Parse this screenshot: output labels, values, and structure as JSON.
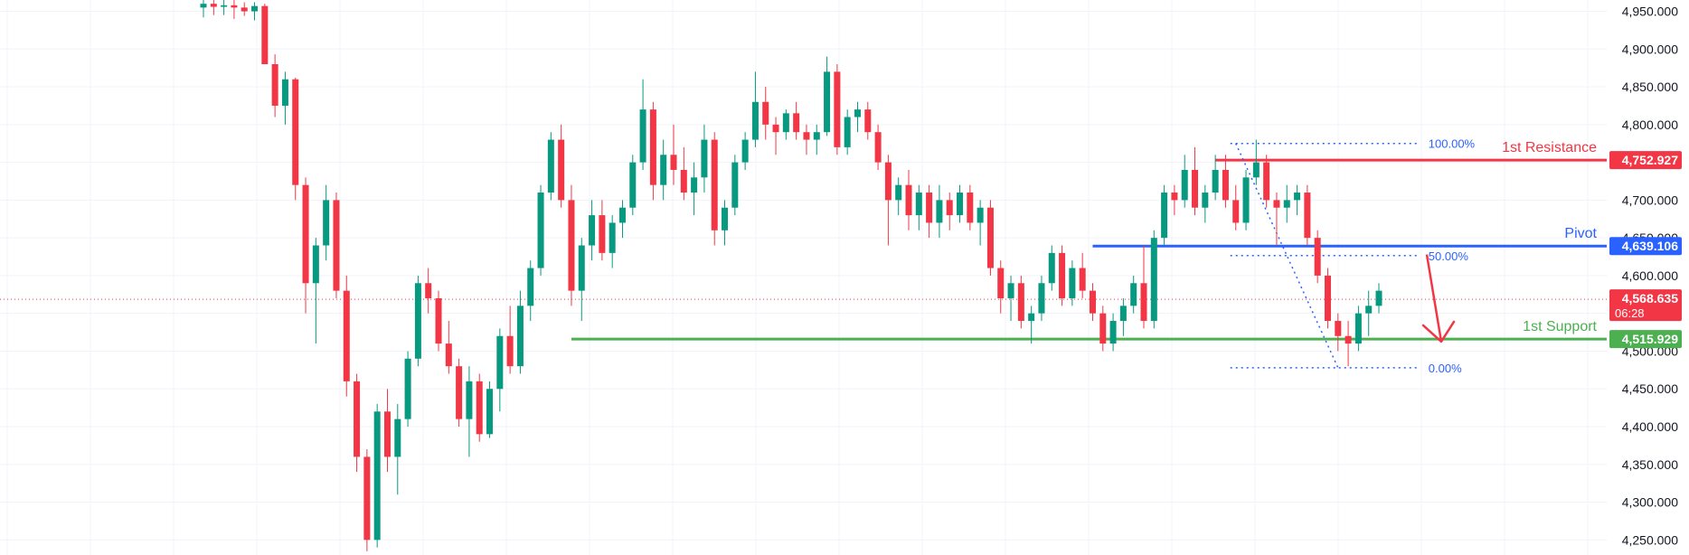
{
  "chart_data": {
    "type": "candlestick",
    "ylim": [
      4230,
      4965
    ],
    "x_count": 116,
    "colors": {
      "up": "#089981",
      "down": "#f23645",
      "grid": "#f0f3fa"
    },
    "y_ticks": [
      "4,950.000",
      "4,900.000",
      "4,850.000",
      "4,800.000",
      "4,750.000",
      "4,700.000",
      "4,650.000",
      "4,600.000",
      "4,550.000",
      "4,500.000",
      "4,450.000",
      "4,400.000",
      "4,350.000",
      "4,300.000",
      "4,250.000"
    ],
    "y_tick_values": [
      4950,
      4900,
      4850,
      4800,
      4750,
      4700,
      4650,
      4600,
      4550,
      4500,
      4450,
      4400,
      4350,
      4300,
      4250
    ],
    "levels": [
      {
        "name": "1st Resistance",
        "value": 4752.927,
        "label": "4,752.927",
        "color": "#f23645",
        "start": 99
      },
      {
        "name": "Pivot",
        "value": 4639.106,
        "label": "4,639.106",
        "color": "#2962ff",
        "start": 87
      },
      {
        "name": "1st Support",
        "value": 4515.929,
        "label": "4,515.929",
        "color": "#4caf50",
        "start": 36
      }
    ],
    "current_price": {
      "value": 4568.635,
      "label": "4,568.635",
      "countdown": "06:28",
      "color": "#f23645"
    },
    "fibonacci": {
      "high": 4775,
      "low": 4478,
      "x_start": 101,
      "x_end": 111,
      "levels": [
        {
          "label": "100.00%",
          "value": 4775
        },
        {
          "label": "50.00%",
          "value": 4626.5
        },
        {
          "label": "0.00%",
          "value": 4478
        }
      ]
    },
    "projection_arrow": {
      "from": 4628,
      "to": 4515
    },
    "candles": [
      [
        4955,
        4965,
        4942,
        4960
      ],
      [
        4960,
        4965,
        4945,
        4956
      ],
      [
        4956,
        4965,
        4945,
        4958
      ],
      [
        4958,
        4965,
        4940,
        4955
      ],
      [
        4955,
        4962,
        4944,
        4950
      ],
      [
        4950,
        4962,
        4938,
        4957
      ],
      [
        4957,
        4960,
        4880,
        4880
      ],
      [
        4880,
        4893,
        4810,
        4825
      ],
      [
        4825,
        4870,
        4800,
        4860
      ],
      [
        4860,
        4862,
        4700,
        4720
      ],
      [
        4720,
        4730,
        4550,
        4590
      ],
      [
        4590,
        4650,
        4510,
        4640
      ],
      [
        4640,
        4720,
        4620,
        4700
      ],
      [
        4700,
        4710,
        4570,
        4580
      ],
      [
        4580,
        4600,
        4440,
        4460
      ],
      [
        4460,
        4470,
        4340,
        4360
      ],
      [
        4360,
        4370,
        4235,
        4250
      ],
      [
        4250,
        4430,
        4240,
        4420
      ],
      [
        4420,
        4450,
        4340,
        4360
      ],
      [
        4360,
        4430,
        4310,
        4410
      ],
      [
        4410,
        4500,
        4400,
        4490
      ],
      [
        4490,
        4600,
        4480,
        4590
      ],
      [
        4590,
        4610,
        4550,
        4570
      ],
      [
        4570,
        4580,
        4500,
        4510
      ],
      [
        4510,
        4540,
        4470,
        4480
      ],
      [
        4480,
        4490,
        4400,
        4410
      ],
      [
        4410,
        4480,
        4360,
        4460
      ],
      [
        4460,
        4470,
        4380,
        4390
      ],
      [
        4390,
        4460,
        4385,
        4450
      ],
      [
        4450,
        4530,
        4420,
        4520
      ],
      [
        4520,
        4560,
        4470,
        4480
      ],
      [
        4480,
        4580,
        4470,
        4560
      ],
      [
        4560,
        4620,
        4540,
        4610
      ],
      [
        4610,
        4720,
        4600,
        4710
      ],
      [
        4710,
        4790,
        4700,
        4780
      ],
      [
        4780,
        4800,
        4690,
        4700
      ],
      [
        4700,
        4720,
        4560,
        4580
      ],
      [
        4580,
        4650,
        4540,
        4640
      ],
      [
        4640,
        4700,
        4620,
        4680
      ],
      [
        4680,
        4700,
        4620,
        4630
      ],
      [
        4630,
        4680,
        4610,
        4670
      ],
      [
        4670,
        4700,
        4650,
        4690
      ],
      [
        4690,
        4760,
        4680,
        4750
      ],
      [
        4750,
        4860,
        4740,
        4820
      ],
      [
        4820,
        4830,
        4700,
        4720
      ],
      [
        4720,
        4780,
        4700,
        4760
      ],
      [
        4760,
        4800,
        4720,
        4740
      ],
      [
        4740,
        4770,
        4700,
        4710
      ],
      [
        4710,
        4750,
        4680,
        4730
      ],
      [
        4730,
        4800,
        4710,
        4780
      ],
      [
        4780,
        4790,
        4640,
        4660
      ],
      [
        4660,
        4700,
        4640,
        4690
      ],
      [
        4690,
        4760,
        4680,
        4750
      ],
      [
        4750,
        4790,
        4740,
        4780
      ],
      [
        4780,
        4870,
        4770,
        4830
      ],
      [
        4830,
        4850,
        4780,
        4800
      ],
      [
        4800,
        4810,
        4760,
        4790
      ],
      [
        4790,
        4820,
        4780,
        4815
      ],
      [
        4815,
        4830,
        4780,
        4790
      ],
      [
        4790,
        4800,
        4760,
        4780
      ],
      [
        4780,
        4800,
        4760,
        4790
      ],
      [
        4790,
        4890,
        4785,
        4870
      ],
      [
        4870,
        4880,
        4760,
        4770
      ],
      [
        4770,
        4820,
        4760,
        4810
      ],
      [
        4810,
        4830,
        4790,
        4820
      ],
      [
        4820,
        4830,
        4780,
        4790
      ],
      [
        4790,
        4800,
        4740,
        4750
      ],
      [
        4750,
        4760,
        4640,
        4700
      ],
      [
        4700,
        4730,
        4680,
        4720
      ],
      [
        4720,
        4740,
        4660,
        4680
      ],
      [
        4680,
        4720,
        4660,
        4710
      ],
      [
        4710,
        4720,
        4650,
        4670
      ],
      [
        4670,
        4720,
        4650,
        4700
      ],
      [
        4700,
        4710,
        4660,
        4680
      ],
      [
        4680,
        4720,
        4670,
        4710
      ],
      [
        4710,
        4720,
        4660,
        4670
      ],
      [
        4670,
        4700,
        4640,
        4690
      ],
      [
        4690,
        4700,
        4600,
        4610
      ],
      [
        4610,
        4620,
        4550,
        4570
      ],
      [
        4570,
        4600,
        4540,
        4590
      ],
      [
        4590,
        4600,
        4530,
        4540
      ],
      [
        4540,
        4560,
        4510,
        4550
      ],
      [
        4550,
        4600,
        4540,
        4590
      ],
      [
        4590,
        4640,
        4580,
        4630
      ],
      [
        4630,
        4640,
        4560,
        4570
      ],
      [
        4570,
        4620,
        4560,
        4610
      ],
      [
        4610,
        4630,
        4570,
        4580
      ],
      [
        4580,
        4590,
        4540,
        4550
      ],
      [
        4550,
        4560,
        4500,
        4510
      ],
      [
        4510,
        4550,
        4500,
        4540
      ],
      [
        4540,
        4570,
        4520,
        4560
      ],
      [
        4560,
        4600,
        4550,
        4590
      ],
      [
        4590,
        4640,
        4530,
        4540
      ],
      [
        4540,
        4660,
        4530,
        4650
      ],
      [
        4650,
        4720,
        4640,
        4710
      ],
      [
        4710,
        4720,
        4680,
        4700
      ],
      [
        4700,
        4760,
        4690,
        4740
      ],
      [
        4740,
        4770,
        4680,
        4690
      ],
      [
        4690,
        4720,
        4670,
        4710
      ],
      [
        4710,
        4760,
        4700,
        4740
      ],
      [
        4740,
        4760,
        4690,
        4700
      ],
      [
        4700,
        4720,
        4660,
        4670
      ],
      [
        4670,
        4740,
        4660,
        4730
      ],
      [
        4730,
        4780,
        4720,
        4750
      ],
      [
        4750,
        4760,
        4690,
        4700
      ],
      [
        4700,
        4710,
        4640,
        4690
      ],
      [
        4690,
        4720,
        4670,
        4700
      ],
      [
        4700,
        4720,
        4680,
        4710
      ],
      [
        4710,
        4720,
        4640,
        4650
      ],
      [
        4650,
        4660,
        4590,
        4600
      ],
      [
        4600,
        4610,
        4530,
        4540
      ],
      [
        4540,
        4550,
        4500,
        4520
      ],
      [
        4520,
        4540,
        4480,
        4510
      ],
      [
        4510,
        4560,
        4500,
        4550
      ],
      [
        4550,
        4580,
        4520,
        4560
      ],
      [
        4560,
        4590,
        4550,
        4580
      ]
    ]
  }
}
